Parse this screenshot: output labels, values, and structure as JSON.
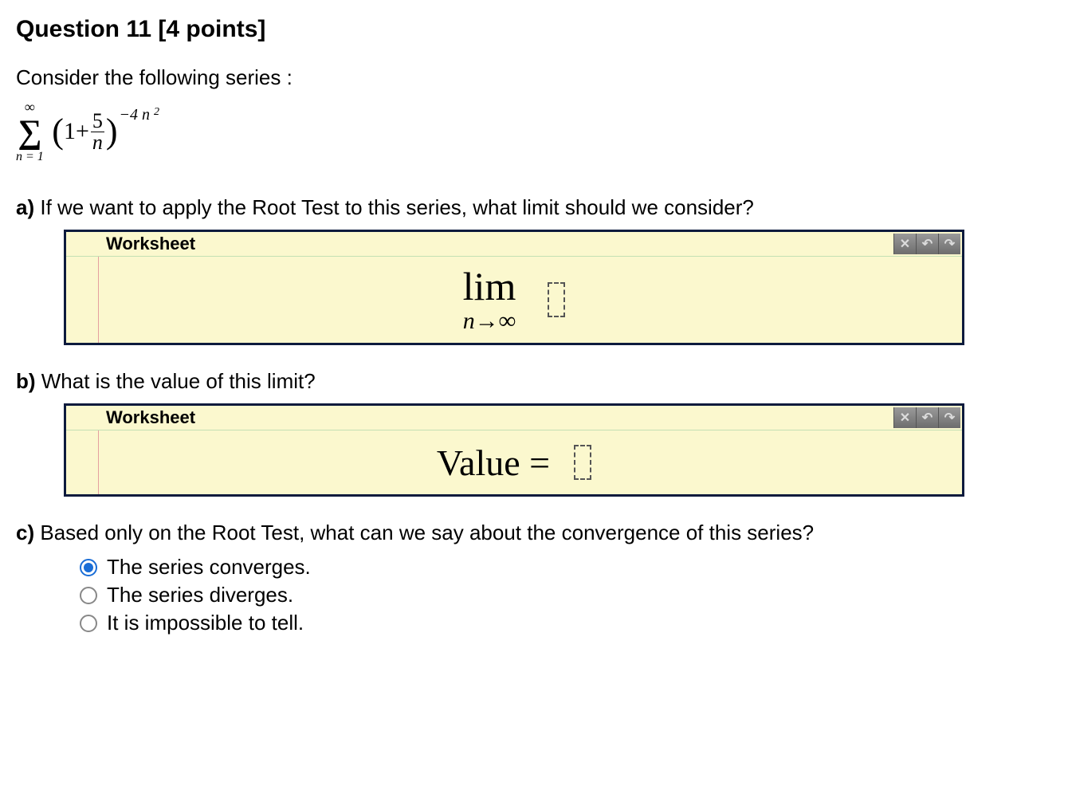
{
  "title": "Question 11 [4 points]",
  "intro": "Consider the following series :",
  "series": {
    "sigma_top": "∞",
    "sigma_bottom": "n = 1",
    "one": "1",
    "plus": "+",
    "frac_num": "5",
    "frac_den": "n",
    "exponent": "−4 n",
    "exponent_sup": "2"
  },
  "part_a": {
    "label": "a)",
    "text": " If we want to apply the Root Test to this series, what limit should we consider?",
    "worksheet_label": "Worksheet",
    "lim": "lim",
    "lim_sub": "n→∞"
  },
  "part_b": {
    "label": "b)",
    "text": " What is the value of this limit?",
    "worksheet_label": "Worksheet",
    "value_label": "Value ="
  },
  "part_c": {
    "label": "c)",
    "text": " Based only on the Root Test, what can we say about the convergence of this series?",
    "options": [
      "The series converges.",
      "The series diverges.",
      "It is impossible to tell."
    ],
    "selected": 0
  },
  "icons": {
    "close": "✕",
    "undo": "↶",
    "redo": "↷"
  }
}
